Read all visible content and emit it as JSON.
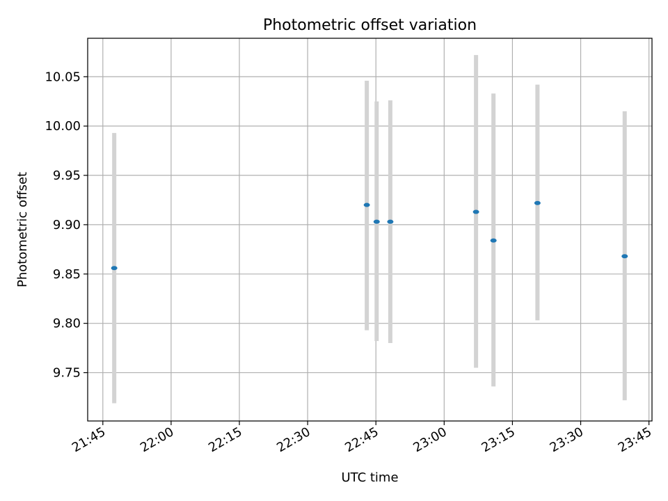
{
  "chart_data": {
    "type": "scatter",
    "title": "Photometric offset variation",
    "xlabel": "UTC time",
    "ylabel": "Photometric offset",
    "x_tick_labels": [
      "21:45",
      "22:00",
      "22:15",
      "22:30",
      "22:45",
      "23:00",
      "23:15",
      "23:30",
      "23:45"
    ],
    "y_tick_labels": [
      "9.75",
      "9.80",
      "9.85",
      "9.90",
      "9.95",
      "10.00",
      "10.05"
    ],
    "x_ticks": [
      "21:45",
      "22:00",
      "22:15",
      "22:30",
      "22:45",
      "23:00",
      "23:15",
      "23:30",
      "23:45"
    ],
    "y_ticks": [
      9.75,
      9.8,
      9.85,
      9.9,
      9.95,
      10.0,
      10.05
    ],
    "xlim": [
      "21:41:40",
      "23:45:40"
    ],
    "ylim": [
      9.701,
      10.089
    ],
    "grid": true,
    "points": [
      {
        "x": "21:47:30",
        "y": 9.856,
        "yerr_low": 9.719,
        "yerr_high": 9.993
      },
      {
        "x": "22:43:00",
        "y": 9.92,
        "yerr_low": 9.793,
        "yerr_high": 10.046
      },
      {
        "x": "22:45:10",
        "y": 9.903,
        "yerr_low": 9.782,
        "yerr_high": 10.025
      },
      {
        "x": "22:48:10",
        "y": 9.903,
        "yerr_low": 9.78,
        "yerr_high": 10.026
      },
      {
        "x": "23:07:00",
        "y": 9.913,
        "yerr_low": 9.755,
        "yerr_high": 10.072
      },
      {
        "x": "23:10:50",
        "y": 9.884,
        "yerr_low": 9.736,
        "yerr_high": 10.033
      },
      {
        "x": "23:20:30",
        "y": 9.922,
        "yerr_low": 9.803,
        "yerr_high": 10.042
      },
      {
        "x": "23:39:40",
        "y": 9.868,
        "yerr_low": 9.722,
        "yerr_high": 10.015
      }
    ],
    "colors": {
      "point": "#1f77b4",
      "errorbar": "#d3d3d3",
      "grid": "#b0b0b0",
      "axis": "#000000"
    }
  }
}
